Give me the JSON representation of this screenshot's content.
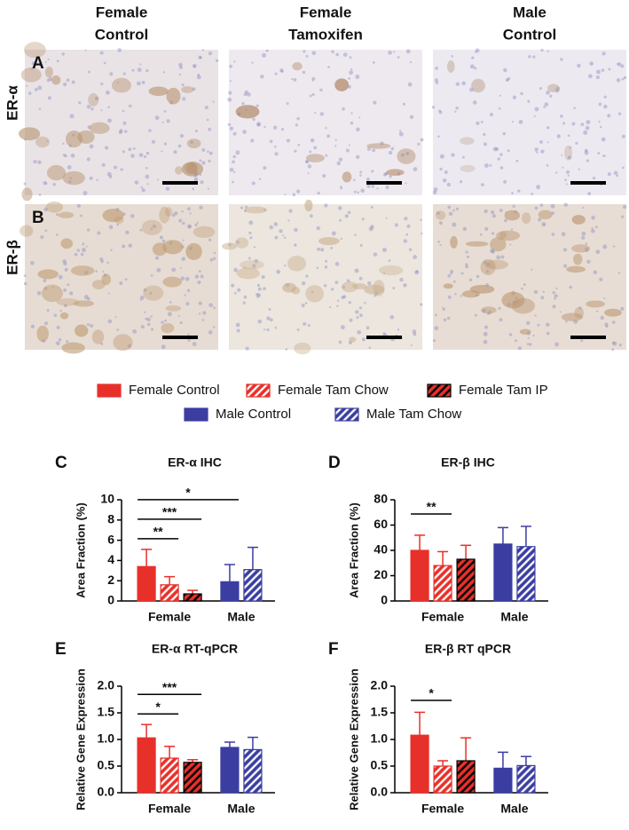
{
  "micrographs": {
    "columns": [
      [
        "Female",
        "Control"
      ],
      [
        "Female",
        "Tamoxifen"
      ],
      [
        "Male",
        "Control"
      ]
    ],
    "rows": [
      {
        "panel": "A",
        "label": "ER-α"
      },
      {
        "panel": "B",
        "label": "ER-β"
      }
    ]
  },
  "chart_data": [
    {
      "type": "bar",
      "panel": "C",
      "title": "ER-α IHC",
      "y_label": "Area Fraction (%)",
      "categories": [
        "Female",
        "Male"
      ],
      "ylim": [
        0,
        10
      ],
      "yticks": [
        0,
        2,
        4,
        6,
        8,
        10
      ],
      "series": [
        {
          "name": "Female Control",
          "color": "#e8302a",
          "pattern": "solid",
          "values": [
            3.4,
            null
          ],
          "errors": [
            1.7,
            null
          ]
        },
        {
          "name": "Female Tam Chow",
          "color": "#e8302a",
          "pattern": "hatch-white",
          "values": [
            1.6,
            null
          ],
          "errors": [
            0.8,
            null
          ]
        },
        {
          "name": "Female Tam IP",
          "color": "#e8302a",
          "pattern": "hatch-black",
          "values": [
            0.7,
            null
          ],
          "errors": [
            0.35,
            null
          ]
        },
        {
          "name": "Male Control",
          "color": "#3b3ea0",
          "pattern": "solid",
          "values": [
            null,
            1.9
          ],
          "errors": [
            null,
            1.7
          ]
        },
        {
          "name": "Male Tam Chow",
          "color": "#3b3ea0",
          "pattern": "hatch-white",
          "values": [
            null,
            3.1
          ],
          "errors": [
            null,
            2.2
          ]
        }
      ],
      "annotations": [
        {
          "text": "**",
          "between": [
            "Female Control",
            "Female Tam Chow"
          ]
        },
        {
          "text": "***",
          "between": [
            "Female Control",
            "Female Tam IP"
          ]
        },
        {
          "text": "*",
          "between": [
            "Female Control",
            "Male Control"
          ]
        }
      ]
    },
    {
      "type": "bar",
      "panel": "D",
      "title": "ER-β IHC",
      "y_label": "Area Fraction (%)",
      "categories": [
        "Female",
        "Male"
      ],
      "ylim": [
        0,
        80
      ],
      "yticks": [
        0,
        20,
        40,
        60,
        80
      ],
      "series": [
        {
          "name": "Female Control",
          "color": "#e8302a",
          "pattern": "solid",
          "values": [
            40,
            null
          ],
          "errors": [
            12,
            null
          ]
        },
        {
          "name": "Female Tam Chow",
          "color": "#e8302a",
          "pattern": "hatch-white",
          "values": [
            28,
            null
          ],
          "errors": [
            11,
            null
          ]
        },
        {
          "name": "Female Tam IP",
          "color": "#e8302a",
          "pattern": "hatch-black",
          "values": [
            33,
            null
          ],
          "errors": [
            11,
            null
          ]
        },
        {
          "name": "Male Control",
          "color": "#3b3ea0",
          "pattern": "solid",
          "values": [
            null,
            45
          ],
          "errors": [
            null,
            13
          ]
        },
        {
          "name": "Male Tam Chow",
          "color": "#3b3ea0",
          "pattern": "hatch-white",
          "values": [
            null,
            43
          ],
          "errors": [
            null,
            16
          ]
        }
      ],
      "annotations": [
        {
          "text": "**",
          "between": [
            "Female Control",
            "Female Tam Chow"
          ]
        }
      ]
    },
    {
      "type": "bar",
      "panel": "E",
      "title": "ER-α RT-qPCR",
      "y_label": "Relative Gene Expression",
      "categories": [
        "Female",
        "Male"
      ],
      "ylim": [
        0,
        2
      ],
      "yticks": [
        {
          "value": 0,
          "label": "0.0"
        },
        0.5,
        {
          "value": 1,
          "label": "1.0"
        },
        1.5,
        {
          "value": 2,
          "label": "2.0"
        }
      ],
      "series": [
        {
          "name": "Female Control",
          "color": "#e8302a",
          "pattern": "solid",
          "values": [
            1.03,
            null
          ],
          "errors": [
            0.25,
            null
          ]
        },
        {
          "name": "Female Tam Chow",
          "color": "#e8302a",
          "pattern": "hatch-white",
          "values": [
            0.65,
            null
          ],
          "errors": [
            0.22,
            null
          ]
        },
        {
          "name": "Female Tam IP",
          "color": "#e8302a",
          "pattern": "hatch-black",
          "values": [
            0.57,
            null
          ],
          "errors": [
            0.05,
            null
          ]
        },
        {
          "name": "Male Control",
          "color": "#3b3ea0",
          "pattern": "solid",
          "values": [
            null,
            0.85
          ],
          "errors": [
            null,
            0.1
          ]
        },
        {
          "name": "Male Tam Chow",
          "color": "#3b3ea0",
          "pattern": "hatch-white",
          "values": [
            null,
            0.81
          ],
          "errors": [
            null,
            0.23
          ]
        }
      ],
      "annotations": [
        {
          "text": "*",
          "between": [
            "Female Control",
            "Female Tam Chow"
          ]
        },
        {
          "text": "***",
          "between": [
            "Female Control",
            "Female Tam IP"
          ]
        }
      ]
    },
    {
      "type": "bar",
      "panel": "F",
      "title": "ER-β RT qPCR",
      "y_label": "Relative Gene Expression",
      "categories": [
        "Female",
        "Male"
      ],
      "ylim": [
        0,
        2
      ],
      "yticks": [
        {
          "value": 0,
          "label": "0.0"
        },
        0.5,
        {
          "value": 1,
          "label": "1.0"
        },
        1.5,
        {
          "value": 2,
          "label": "2.0"
        }
      ],
      "series": [
        {
          "name": "Female Control",
          "color": "#e8302a",
          "pattern": "solid",
          "values": [
            1.08,
            null
          ],
          "errors": [
            0.43,
            null
          ]
        },
        {
          "name": "Female Tam Chow",
          "color": "#e8302a",
          "pattern": "hatch-white",
          "values": [
            0.5,
            null
          ],
          "errors": [
            0.1,
            null
          ]
        },
        {
          "name": "Female Tam IP",
          "color": "#e8302a",
          "pattern": "hatch-black",
          "values": [
            0.6,
            null
          ],
          "errors": [
            0.43,
            null
          ]
        },
        {
          "name": "Male Control",
          "color": "#3b3ea0",
          "pattern": "solid",
          "values": [
            null,
            0.46
          ],
          "errors": [
            null,
            0.3
          ]
        },
        {
          "name": "Male Tam Chow",
          "color": "#3b3ea0",
          "pattern": "hatch-white",
          "values": [
            null,
            0.51
          ],
          "errors": [
            null,
            0.17
          ]
        }
      ],
      "annotations": [
        {
          "text": "*",
          "between": [
            "Female Control",
            "Female Tam Chow"
          ]
        }
      ]
    }
  ]
}
